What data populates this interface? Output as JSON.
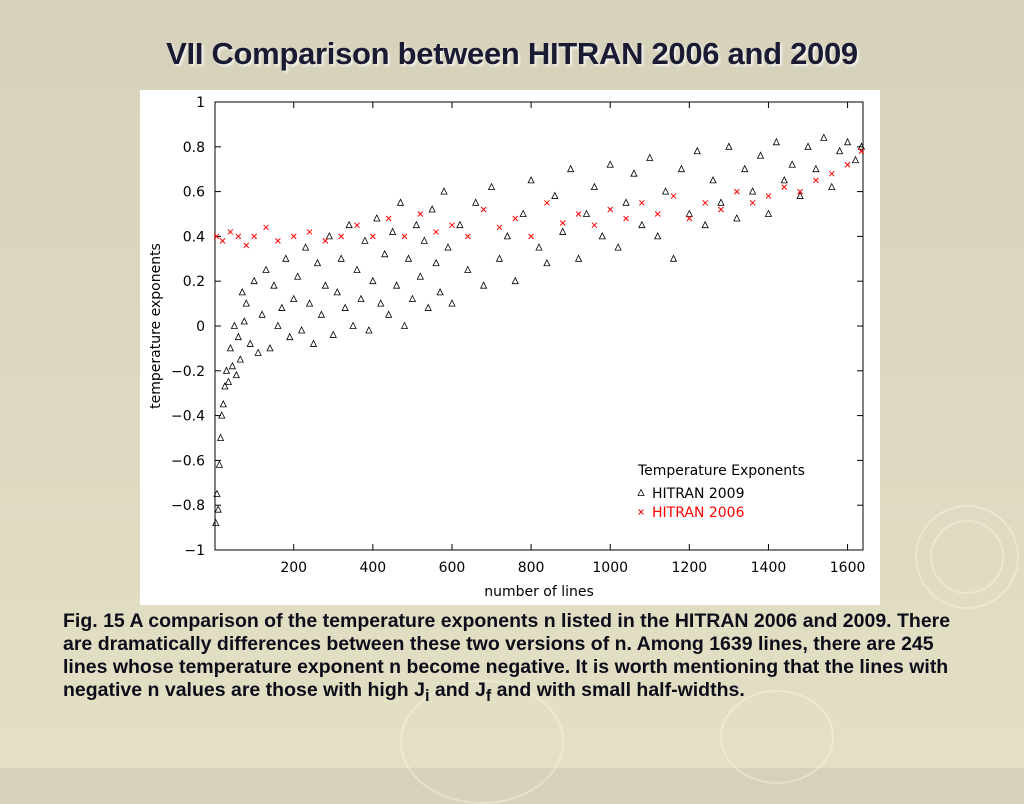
{
  "slide": {
    "title": "VII Comparison between HITRAN 2006 and 2009",
    "caption_main": "Fig. 15 A comparison of the temperature exponents n listed in the HITRAN 2006 and 2009. There are dramatically differences between these two versions of n. Among 1639 lines, there are 245 lines whose temperature exponent n become negative. It is worth mentioning that the lines with negative n values are those with high J",
    "caption_sub_i": "i",
    "caption_and": " and J",
    "caption_sub_f": "f",
    "caption_end": " and with small half-widths."
  },
  "colors": {
    "series_2009": "#000000",
    "series_2006": "#ff0000",
    "title": "#1a1a33"
  },
  "chart_data": {
    "type": "scatter",
    "xlabel": "number of lines",
    "ylabel": "temperature exponents",
    "xlim": [
      1,
      1639
    ],
    "ylim": [
      -1,
      1
    ],
    "xticks": [
      200,
      400,
      600,
      800,
      1000,
      1200,
      1400,
      1600
    ],
    "yticks": [
      -1,
      -0.8,
      -0.6,
      -0.4,
      -0.2,
      0,
      0.2,
      0.4,
      0.6,
      0.8,
      1
    ],
    "ytick_labels": [
      "−1",
      "−0.8",
      "−0.6",
      "−0.4",
      "−0.2",
      "0",
      "0.2",
      "0.4",
      "0.6",
      "0.8",
      "1"
    ],
    "legend_title": "Temperature Exponents",
    "legend_position": "bottom-right",
    "series": [
      {
        "name": "HITRAN 2009",
        "marker": "triangle",
        "x": [
          3,
          6,
          9,
          12,
          15,
          18,
          22,
          26,
          30,
          35,
          40,
          45,
          50,
          55,
          60,
          65,
          70,
          75,
          80,
          90,
          100,
          110,
          120,
          130,
          140,
          150,
          160,
          170,
          180,
          190,
          200,
          210,
          220,
          230,
          240,
          250,
          260,
          270,
          280,
          290,
          300,
          310,
          320,
          330,
          340,
          350,
          360,
          370,
          380,
          390,
          400,
          410,
          420,
          430,
          440,
          450,
          460,
          470,
          480,
          490,
          500,
          510,
          520,
          530,
          540,
          550,
          560,
          570,
          580,
          590,
          600,
          620,
          640,
          660,
          680,
          700,
          720,
          740,
          760,
          780,
          800,
          820,
          840,
          860,
          880,
          900,
          920,
          940,
          960,
          980,
          1000,
          1020,
          1040,
          1060,
          1080,
          1100,
          1120,
          1140,
          1160,
          1180,
          1200,
          1220,
          1240,
          1260,
          1280,
          1300,
          1320,
          1340,
          1360,
          1380,
          1400,
          1420,
          1440,
          1460,
          1480,
          1500,
          1520,
          1540,
          1560,
          1580,
          1600,
          1620,
          1635
        ],
        "y": [
          -0.88,
          -0.75,
          -0.82,
          -0.62,
          -0.5,
          -0.4,
          -0.35,
          -0.27,
          -0.2,
          -0.25,
          -0.1,
          -0.18,
          0.0,
          -0.22,
          -0.05,
          -0.15,
          0.15,
          0.02,
          0.1,
          -0.08,
          0.2,
          -0.12,
          0.05,
          0.25,
          -0.1,
          0.18,
          0.0,
          0.08,
          0.3,
          -0.05,
          0.12,
          0.22,
          -0.02,
          0.35,
          0.1,
          -0.08,
          0.28,
          0.05,
          0.18,
          0.4,
          -0.04,
          0.15,
          0.3,
          0.08,
          0.45,
          0.0,
          0.25,
          0.12,
          0.38,
          -0.02,
          0.2,
          0.48,
          0.1,
          0.32,
          0.05,
          0.42,
          0.18,
          0.55,
          0.0,
          0.3,
          0.12,
          0.45,
          0.22,
          0.38,
          0.08,
          0.52,
          0.28,
          0.15,
          0.6,
          0.35,
          0.1,
          0.45,
          0.25,
          0.55,
          0.18,
          0.62,
          0.3,
          0.4,
          0.2,
          0.5,
          0.65,
          0.35,
          0.28,
          0.58,
          0.42,
          0.7,
          0.3,
          0.5,
          0.62,
          0.4,
          0.72,
          0.35,
          0.55,
          0.68,
          0.45,
          0.75,
          0.4,
          0.6,
          0.3,
          0.7,
          0.5,
          0.78,
          0.45,
          0.65,
          0.55,
          0.8,
          0.48,
          0.7,
          0.6,
          0.76,
          0.5,
          0.82,
          0.65,
          0.72,
          0.58,
          0.8,
          0.7,
          0.84,
          0.62,
          0.78,
          0.82,
          0.74,
          0.8
        ]
      },
      {
        "name": "HITRAN 2006",
        "marker": "x",
        "x": [
          5,
          20,
          40,
          60,
          80,
          100,
          130,
          160,
          200,
          240,
          280,
          320,
          360,
          400,
          440,
          480,
          520,
          560,
          600,
          640,
          680,
          720,
          760,
          800,
          840,
          880,
          920,
          960,
          1000,
          1040,
          1080,
          1120,
          1160,
          1200,
          1240,
          1280,
          1320,
          1360,
          1400,
          1440,
          1480,
          1520,
          1560,
          1600,
          1635
        ],
        "y": [
          0.4,
          0.38,
          0.42,
          0.4,
          0.36,
          0.4,
          0.44,
          0.38,
          0.4,
          0.42,
          0.38,
          0.4,
          0.45,
          0.4,
          0.48,
          0.4,
          0.5,
          0.42,
          0.45,
          0.4,
          0.52,
          0.44,
          0.48,
          0.4,
          0.55,
          0.46,
          0.5,
          0.45,
          0.52,
          0.48,
          0.55,
          0.5,
          0.58,
          0.48,
          0.55,
          0.52,
          0.6,
          0.55,
          0.58,
          0.62,
          0.6,
          0.65,
          0.68,
          0.72,
          0.78
        ]
      }
    ]
  }
}
